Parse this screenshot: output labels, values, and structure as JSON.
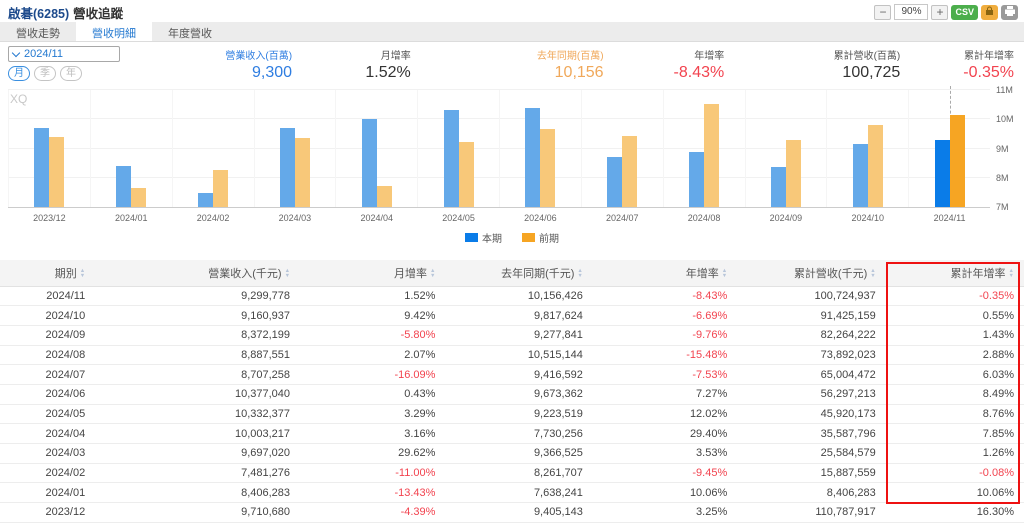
{
  "header": {
    "title_stock": "啟碁(6285)",
    "title_page": "營收追蹤",
    "zoom_out": "−",
    "zoom_level": "90%",
    "zoom_in": "+",
    "csv_label": "CSV"
  },
  "tabs": [
    {
      "label": "營收走勢"
    },
    {
      "label": "營收明細"
    },
    {
      "label": "年度營收"
    }
  ],
  "controls": {
    "period_select": "2024/11",
    "freq_month": "月",
    "freq_quarter": "季",
    "freq_year": "年"
  },
  "stats": [
    {
      "label": "營業收入(百萬)",
      "value": "9,300"
    },
    {
      "label": "月增率",
      "value": "1.52%"
    },
    {
      "label": "去年同期(百萬)",
      "value": "10,156"
    },
    {
      "label": "年增率",
      "value": "-8.43%"
    },
    {
      "label": "累計營收(百萬)",
      "value": "100,725"
    },
    {
      "label": "累計年增率",
      "value": "-0.35%"
    }
  ],
  "watermark": "XQ",
  "chart_data": {
    "type": "bar",
    "title": "",
    "xlabel": "",
    "ylabel": "",
    "unit": "千元",
    "categories": [
      "2023/12",
      "2024/01",
      "2024/02",
      "2024/03",
      "2024/04",
      "2024/05",
      "2024/06",
      "2024/07",
      "2024/08",
      "2024/09",
      "2024/10",
      "2024/11"
    ],
    "series": [
      {
        "name": "本期",
        "color": "#64a9e9",
        "highlight_color": "#0a7ce8",
        "values": [
          9710680,
          8406283,
          7481276,
          9697020,
          10003217,
          10332377,
          10377040,
          8707258,
          8887551,
          8372199,
          9160937,
          9299778
        ]
      },
      {
        "name": "前期",
        "color": "#f8c879",
        "highlight_color": "#f6a523",
        "values": [
          9405143,
          7638241,
          8261707,
          9366525,
          7730256,
          9223519,
          9673362,
          9416592,
          10515144,
          9277841,
          9817624,
          10156426
        ]
      }
    ],
    "ylim": [
      7000000,
      11000000
    ],
    "yticks": [
      {
        "label": "11M",
        "value": 11000000
      },
      {
        "label": "10M",
        "value": 10000000
      },
      {
        "label": "9M",
        "value": 9000000
      },
      {
        "label": "8M",
        "value": 8000000
      },
      {
        "label": "7M",
        "value": 7000000
      }
    ],
    "highlight_index": 11,
    "grid": true,
    "legend_position": "bottom"
  },
  "legend": [
    {
      "label": "本期",
      "color": "#0a7ce8"
    },
    {
      "label": "前期",
      "color": "#f6a523"
    }
  ],
  "table": {
    "headers": [
      "期別",
      "營業收入(千元)",
      "月增率",
      "去年同期(千元)",
      "年增率",
      "累計營收(千元)",
      "累計年增率"
    ],
    "rows": [
      [
        "2024/11",
        "9,299,778",
        "1.52%",
        "10,156,426",
        "-8.43%",
        "100,724,937",
        "-0.35%"
      ],
      [
        "2024/10",
        "9,160,937",
        "9.42%",
        "9,817,624",
        "-6.69%",
        "91,425,159",
        "0.55%"
      ],
      [
        "2024/09",
        "8,372,199",
        "-5.80%",
        "9,277,841",
        "-9.76%",
        "82,264,222",
        "1.43%"
      ],
      [
        "2024/08",
        "8,887,551",
        "2.07%",
        "10,515,144",
        "-15.48%",
        "73,892,023",
        "2.88%"
      ],
      [
        "2024/07",
        "8,707,258",
        "-16.09%",
        "9,416,592",
        "-7.53%",
        "65,004,472",
        "6.03%"
      ],
      [
        "2024/06",
        "10,377,040",
        "0.43%",
        "9,673,362",
        "7.27%",
        "56,297,213",
        "8.49%"
      ],
      [
        "2024/05",
        "10,332,377",
        "3.29%",
        "9,223,519",
        "12.02%",
        "45,920,173",
        "8.76%"
      ],
      [
        "2024/04",
        "10,003,217",
        "3.16%",
        "7,730,256",
        "29.40%",
        "35,587,796",
        "7.85%"
      ],
      [
        "2024/03",
        "9,697,020",
        "29.62%",
        "9,366,525",
        "3.53%",
        "25,584,579",
        "1.26%"
      ],
      [
        "2024/02",
        "7,481,276",
        "-11.00%",
        "8,261,707",
        "-9.45%",
        "15,887,559",
        "-0.08%"
      ],
      [
        "2024/01",
        "8,406,283",
        "-13.43%",
        "7,638,241",
        "10.06%",
        "8,406,283",
        "10.06%"
      ],
      [
        "2023/12",
        "9,710,680",
        "-4.39%",
        "9,405,143",
        "3.25%",
        "110,787,917",
        "16.30%"
      ]
    ]
  }
}
